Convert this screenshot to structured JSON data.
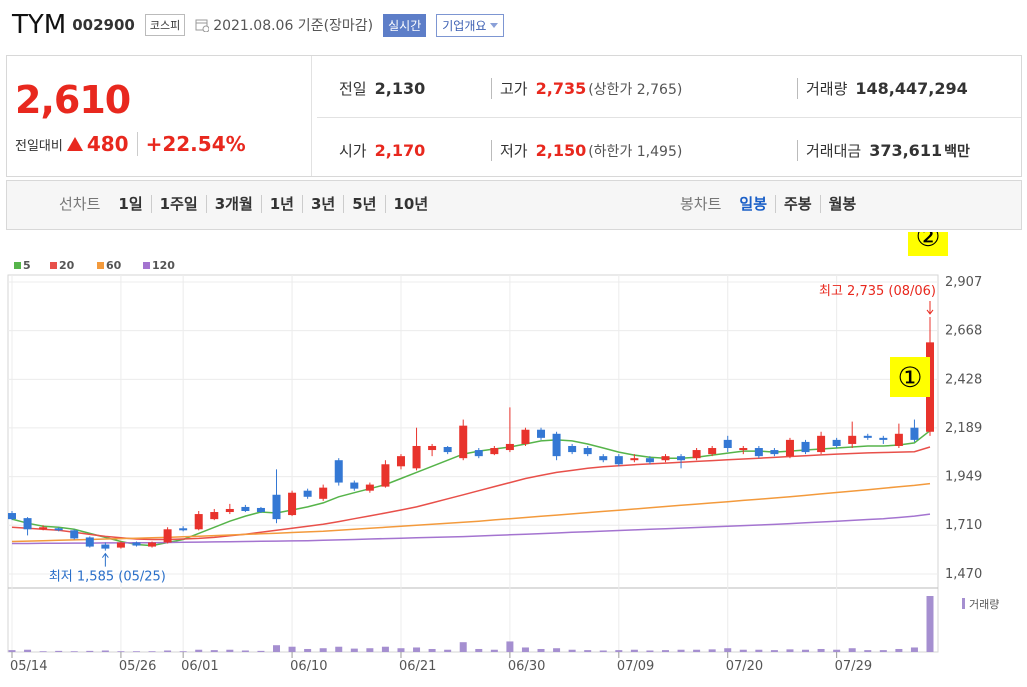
{
  "header": {
    "name": "TYM",
    "code": "002900",
    "market": "코스피",
    "date": "2021.08.06 기준(장마감)",
    "buttons": [
      "실시간",
      "기업개요"
    ]
  },
  "quote": {
    "price": "2,610",
    "change_label": "전일대비",
    "change": "480",
    "change_pct": "+22.54%",
    "items": [
      {
        "label": "전일",
        "value": "2,130"
      },
      {
        "label": "고가",
        "value": "2,735",
        "note": "(상한가 2,765)"
      },
      {
        "label": "거래량",
        "value": "148,447,294"
      },
      {
        "label": "시가",
        "value": "2,170"
      },
      {
        "label": "저가",
        "value": "2,150",
        "note": "(하한가 1,495)"
      },
      {
        "label": "거래대금",
        "value": "373,611",
        "unit": "백만"
      }
    ]
  },
  "tabs": {
    "line_label": "선차트",
    "line": [
      "1일",
      "1주일",
      "3개월",
      "1년",
      "3년",
      "5년",
      "10년"
    ],
    "candle_label": "봉차트",
    "candle": [
      "일봉",
      "주봉",
      "월봉"
    ]
  },
  "chart_data": {
    "type": "candlestick",
    "categories": [
      "05/14",
      null,
      null,
      null,
      null,
      null,
      null,
      "05/26",
      null,
      null,
      null,
      "06/01",
      null,
      null,
      null,
      null,
      null,
      null,
      "06/10",
      null,
      null,
      null,
      null,
      null,
      null,
      "06/21",
      null,
      null,
      null,
      null,
      null,
      null,
      "06/30",
      null,
      null,
      null,
      null,
      null,
      null,
      "07/09",
      null,
      null,
      null,
      null,
      null,
      null,
      "07/20",
      null,
      null,
      null,
      null,
      null,
      null,
      "07/29",
      null,
      null,
      null,
      null,
      null,
      null
    ],
    "open": [
      1770,
      1745,
      1690,
      1695,
      1685,
      1650,
      1615,
      1600,
      1625,
      1605,
      1625,
      1695,
      1690,
      1740,
      1775,
      1800,
      1795,
      1860,
      1760,
      1880,
      1840,
      2030,
      1920,
      1880,
      1900,
      2000,
      1990,
      2080,
      2095,
      2040,
      2080,
      2060,
      2080,
      2110,
      2180,
      2160,
      2100,
      2090,
      2050,
      2050,
      2030,
      2040,
      2030,
      2050,
      2040,
      2060,
      2130,
      2080,
      2090,
      2080,
      2050,
      2120,
      2070,
      2130,
      2110,
      2150,
      2140,
      2100,
      2190,
      2170
    ],
    "high": [
      1780,
      1750,
      1710,
      1700,
      1690,
      1655,
      1625,
      1630,
      1630,
      1630,
      1700,
      1705,
      1780,
      1790,
      1815,
      1810,
      1800,
      1985,
      1880,
      1890,
      1910,
      2040,
      1930,
      1920,
      2030,
      2060,
      2190,
      2110,
      2100,
      2230,
      2090,
      2100,
      2290,
      2190,
      2190,
      2170,
      2110,
      2100,
      2060,
      2060,
      2060,
      2050,
      2060,
      2060,
      2090,
      2100,
      2150,
      2100,
      2100,
      2090,
      2140,
      2130,
      2170,
      2140,
      2220,
      2160,
      2150,
      2210,
      2230,
      2735
    ],
    "low": [
      1735,
      1660,
      1685,
      1680,
      1640,
      1600,
      1585,
      1595,
      1605,
      1600,
      1620,
      1680,
      1685,
      1735,
      1765,
      1775,
      1770,
      1720,
      1755,
      1840,
      1830,
      1905,
      1880,
      1870,
      1895,
      1985,
      1980,
      2050,
      2060,
      2030,
      2040,
      2055,
      2070,
      2100,
      2130,
      2030,
      2060,
      2050,
      2020,
      2000,
      2020,
      2010,
      2020,
      1990,
      2030,
      2050,
      2070,
      2060,
      2040,
      2050,
      2040,
      2060,
      2060,
      2090,
      2090,
      2130,
      2110,
      2090,
      2120,
      2150
    ],
    "close": [
      1740,
      1690,
      1700,
      1685,
      1645,
      1605,
      1595,
      1625,
      1610,
      1625,
      1690,
      1685,
      1765,
      1775,
      1790,
      1780,
      1775,
      1740,
      1870,
      1850,
      1895,
      1920,
      1890,
      1910,
      2010,
      2050,
      2100,
      2100,
      2070,
      2200,
      2050,
      2090,
      2110,
      2180,
      2140,
      2050,
      2070,
      2060,
      2030,
      2010,
      2040,
      2020,
      2050,
      2030,
      2080,
      2090,
      2090,
      2090,
      2050,
      2060,
      2130,
      2070,
      2150,
      2100,
      2150,
      2140,
      2130,
      2160,
      2130,
      2610
    ],
    "up_color": "#e8332c",
    "down_color": "#3478d4",
    "ma": [
      {
        "name": "5",
        "color": "#56b44a",
        "values": [
          1740,
          1720,
          1705,
          1700,
          1690,
          1670,
          1650,
          1630,
          1615,
          1610,
          1625,
          1640,
          1670,
          1700,
          1730,
          1755,
          1775,
          1770,
          1785,
          1800,
          1820,
          1850,
          1870,
          1890,
          1910,
          1940,
          1970,
          2000,
          2030,
          2060,
          2075,
          2085,
          2095,
          2110,
          2125,
          2130,
          2125,
          2110,
          2090,
          2070,
          2055,
          2045,
          2040,
          2040,
          2045,
          2055,
          2065,
          2075,
          2075,
          2070,
          2075,
          2080,
          2085,
          2090,
          2095,
          2100,
          2100,
          2105,
          2115,
          2175
        ]
      },
      {
        "name": "20",
        "color": "#e8504a",
        "values": [
          1700,
          1695,
          1690,
          1685,
          1675,
          1665,
          1655,
          1648,
          1642,
          1640,
          1640,
          1642,
          1645,
          1650,
          1658,
          1666,
          1675,
          1685,
          1695,
          1705,
          1715,
          1728,
          1742,
          1756,
          1770,
          1785,
          1800,
          1820,
          1840,
          1860,
          1880,
          1900,
          1920,
          1940,
          1955,
          1970,
          1980,
          1990,
          1998,
          2003,
          2008,
          2012,
          2016,
          2020,
          2024,
          2028,
          2032,
          2036,
          2040,
          2044,
          2048,
          2052,
          2056,
          2060,
          2063,
          2066,
          2068,
          2070,
          2072,
          2095
        ]
      },
      {
        "name": "60",
        "color": "#f39a3c",
        "values": [
          1630,
          1632,
          1634,
          1636,
          1638,
          1640,
          1642,
          1644,
          1646,
          1648,
          1650,
          1653,
          1656,
          1659,
          1662,
          1665,
          1668,
          1671,
          1674,
          1677,
          1680,
          1685,
          1690,
          1695,
          1700,
          1705,
          1710,
          1715,
          1720,
          1725,
          1730,
          1736,
          1742,
          1748,
          1754,
          1760,
          1766,
          1772,
          1778,
          1784,
          1790,
          1796,
          1802,
          1808,
          1814,
          1820,
          1826,
          1832,
          1838,
          1844,
          1850,
          1857,
          1864,
          1871,
          1878,
          1885,
          1892,
          1899,
          1906,
          1915
        ]
      },
      {
        "name": "120",
        "color": "#a474d0",
        "values": [
          1620,
          1620,
          1621,
          1621,
          1622,
          1622,
          1623,
          1623,
          1624,
          1624,
          1625,
          1626,
          1627,
          1628,
          1629,
          1630,
          1631,
          1632,
          1633,
          1634,
          1636,
          1638,
          1640,
          1642,
          1644,
          1646,
          1648,
          1650,
          1652,
          1654,
          1657,
          1660,
          1663,
          1666,
          1669,
          1672,
          1675,
          1678,
          1681,
          1684,
          1687,
          1690,
          1693,
          1696,
          1699,
          1702,
          1705,
          1708,
          1711,
          1714,
          1718,
          1722,
          1726,
          1730,
          1734,
          1738,
          1742,
          1748,
          1755,
          1765
        ]
      }
    ],
    "volume": {
      "name": "거래량",
      "color": "#a58fd0",
      "values": [
        5000000,
        6000000,
        2000000,
        3000000,
        2000000,
        3000000,
        4000000,
        2000000,
        2000000,
        2000000,
        4000000,
        2000000,
        6000000,
        5000000,
        6000000,
        4000000,
        3000000,
        18000000,
        14000000,
        8000000,
        10000000,
        14000000,
        9000000,
        10000000,
        14000000,
        10000000,
        12000000,
        8000000,
        6000000,
        26000000,
        8000000,
        6000000,
        28000000,
        12000000,
        8000000,
        10000000,
        6000000,
        5000000,
        4000000,
        5000000,
        6000000,
        4000000,
        5000000,
        6000000,
        6000000,
        7000000,
        10000000,
        6000000,
        6000000,
        5000000,
        7000000,
        6000000,
        8000000,
        6000000,
        10000000,
        5000000,
        5000000,
        8000000,
        12000000,
        148447294
      ]
    },
    "ylim": [
      1470,
      2907
    ],
    "yticks": [
      {
        "value": 1470,
        "label": "1,470"
      },
      {
        "value": 1710,
        "label": "1,710"
      },
      {
        "value": 1949,
        "label": "1,949"
      },
      {
        "value": 2189,
        "label": "2,189"
      },
      {
        "value": 2428,
        "label": "2,428"
      },
      {
        "value": 2668,
        "label": "2,668"
      },
      {
        "value": 2907,
        "label": "2,907"
      }
    ],
    "grid": true,
    "high_label": "최고 2,735 (08/06)",
    "low_label": "최저 1,585 (05/25)",
    "markers": [
      "①",
      "②"
    ]
  }
}
